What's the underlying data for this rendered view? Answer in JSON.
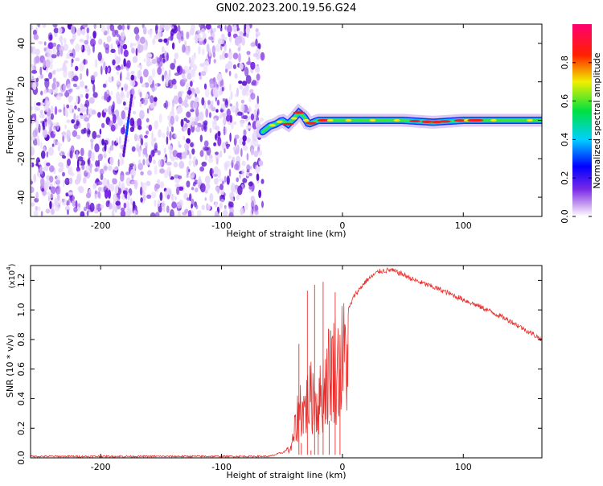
{
  "figure": {
    "title": "GN02.2023.200.19.56.G24"
  },
  "colors": {
    "snr_line": "#e8302e",
    "frame": "#000000",
    "background": "#ffffff"
  },
  "chart_data": [
    {
      "type": "heatmap",
      "name": "spectrogram",
      "xlabel": "Height of straight line (km)",
      "ylabel": "Frequency (Hz)",
      "xlim": [
        -258,
        165
      ],
      "ylim": [
        -50,
        50
      ],
      "xticks": [
        "-200",
        "-100",
        "0",
        "100"
      ],
      "xtick_values": [
        -200,
        -100,
        0,
        100
      ],
      "yticks": [
        "-40",
        "-20",
        "0",
        "20",
        "40"
      ],
      "ytick_values": [
        -40,
        -20,
        0,
        20,
        40
      ],
      "colorbar": {
        "label": "Normalized spectral amplitude",
        "range": [
          0,
          1
        ],
        "ticks": [
          "0.0",
          "0.2",
          "0.4",
          "0.6",
          "0.8"
        ],
        "tick_values": [
          0.0,
          0.2,
          0.4,
          0.6,
          0.8
        ],
        "colormap": "rainbow-reversed (white-purple-blue-cyan-green-yellow-red-magenta)"
      },
      "noise_region_x": [
        -258,
        -66
      ],
      "signal_ridge": {
        "x": [
          -66,
          -60,
          -55,
          -50,
          -45,
          -40,
          -36,
          -32,
          -28,
          -24,
          -20,
          -15,
          -10,
          0,
          10,
          30,
          50,
          75,
          100,
          130,
          165
        ],
        "freq": [
          -6,
          -3,
          -2,
          0,
          -2,
          1,
          4,
          2,
          -2,
          -1,
          0,
          0,
          0,
          0,
          0,
          0,
          0,
          -1,
          0,
          0,
          0
        ]
      }
    },
    {
      "type": "line",
      "name": "snr",
      "xlabel": "Height of straight line (km)",
      "ylabel": "SNR (10 * v/v)",
      "y_multiplier": "(x10",
      "y_multiplier_exp": "4",
      "y_multiplier_close": ")",
      "xlim": [
        -258,
        165
      ],
      "ylim": [
        0,
        1.3
      ],
      "xticks": [
        "-200",
        "-100",
        "0",
        "100"
      ],
      "xtick_values": [
        -200,
        -100,
        0,
        100
      ],
      "yticks": [
        "0.0",
        "0.2",
        "0.4",
        "0.6",
        "0.8",
        "1.0",
        "1.2"
      ],
      "ytick_values": [
        0.0,
        0.2,
        0.4,
        0.6,
        0.8,
        1.0,
        1.2
      ],
      "series": [
        {
          "envelope_x": [
            -258,
            -60,
            -48,
            -42,
            -38,
            -35,
            -32,
            -28,
            -24,
            -20,
            -16,
            -12,
            -8,
            -4,
            0,
            5,
            10,
            20,
            30,
            40,
            50,
            60,
            80,
            100,
            120,
            140,
            165
          ],
          "envelope_y": [
            0.01,
            0.01,
            0.04,
            0.1,
            0.35,
            0.5,
            0.45,
            0.55,
            0.6,
            0.5,
            0.65,
            0.8,
            0.9,
            0.85,
            0.95,
            1.0,
            1.1,
            1.2,
            1.26,
            1.27,
            1.24,
            1.2,
            1.14,
            1.07,
            1.0,
            0.92,
            0.8
          ],
          "spikes": [
            [
              -36,
              0.77
            ],
            [
              -34,
              0.1
            ],
            [
              -29,
              1.13
            ],
            [
              -26,
              0.05
            ],
            [
              -23,
              1.17
            ],
            [
              -20,
              0.35
            ],
            [
              -16,
              1.19
            ],
            [
              -11,
              0.25
            ],
            [
              -6,
              1.12
            ],
            [
              -2,
              0.6
            ]
          ]
        }
      ]
    }
  ]
}
